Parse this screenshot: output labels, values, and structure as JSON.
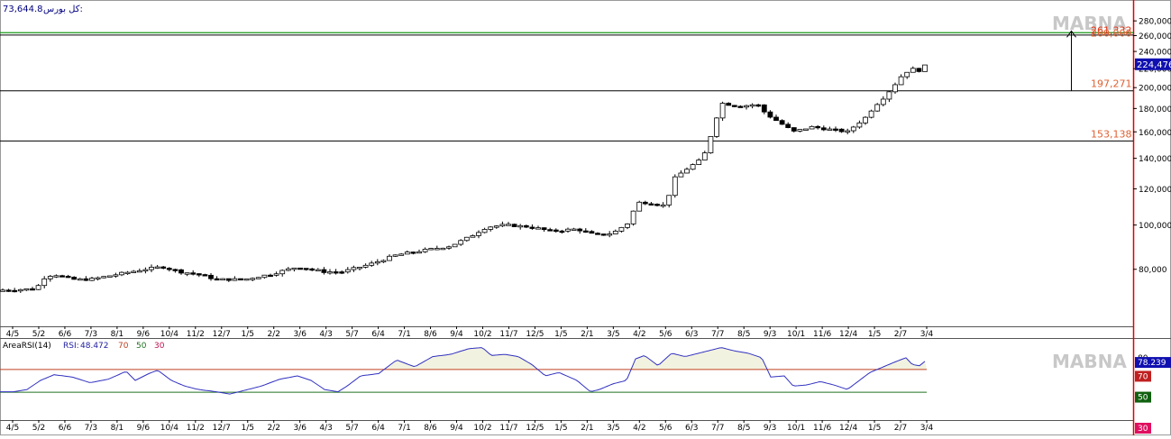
{
  "header": {
    "value": "73,644.8",
    "label": "کل بورس:"
  },
  "watermark": "MABNA",
  "chart_data": [
    {
      "type": "candlestick",
      "y_scale": "log",
      "ylim": [
        60000,
        300000
      ],
      "y_ticks": [
        "80,000",
        "100,000",
        "120,000",
        "140,000",
        "160,000",
        "180,000",
        "200,000",
        "220,000",
        "240,000",
        "260,000",
        "280,000"
      ],
      "y_tick_values": [
        80000,
        100000,
        120000,
        140000,
        160000,
        180000,
        200000,
        220000,
        240000,
        260000,
        280000
      ],
      "x_tick_labels": [
        "4/5",
        "5/2",
        "6/6",
        "7/3",
        "8/1",
        "9/6",
        "10/4",
        "11/2",
        "12/7",
        "1/5",
        "2/2",
        "3/6",
        "4/3",
        "5/7",
        "6/4",
        "7/1",
        "8/6",
        "9/4",
        "10/2",
        "11/7",
        "12/5",
        "1/5",
        "2/1",
        "3/5",
        "4/2",
        "5/6",
        "6/3",
        "7/7",
        "8/5",
        "9/3",
        "10/1",
        "11/6",
        "12/4",
        "1/5",
        "2/7",
        "3/4"
      ],
      "last_price_label": "224,476.",
      "last_price_value": 224476,
      "levels": [
        {
          "label": "197,271",
          "value": 197271
        },
        {
          "label": "153,138",
          "value": 153138
        }
      ],
      "target_labels": [
        "261,332",
        "260,000"
      ],
      "target_values": [
        261332,
        260000
      ],
      "colors": {
        "up": "#ffffff",
        "down": "#000000",
        "last_price_bg": "#1010b0",
        "levels_text": "#e06030",
        "target_text": "#e03010",
        "axis_red": "#e00000"
      },
      "close_anchors": [
        [
          0,
          72000
        ],
        [
          40,
          72500
        ],
        [
          50,
          77000
        ],
        [
          60,
          78000
        ],
        [
          80,
          76000
        ],
        [
          100,
          76000
        ],
        [
          130,
          78000
        ],
        [
          160,
          80000
        ],
        [
          180,
          81000
        ],
        [
          200,
          79000
        ],
        [
          220,
          78000
        ],
        [
          240,
          76000
        ],
        [
          270,
          76000
        ],
        [
          300,
          78000
        ],
        [
          330,
          81000
        ],
        [
          360,
          79000
        ],
        [
          380,
          79000
        ],
        [
          410,
          82000
        ],
        [
          440,
          86000
        ],
        [
          470,
          88000
        ],
        [
          500,
          90000
        ],
        [
          520,
          94000
        ],
        [
          540,
          99000
        ],
        [
          560,
          100000
        ],
        [
          590,
          99000
        ],
        [
          610,
          97000
        ],
        [
          640,
          98000
        ],
        [
          660,
          95000
        ],
        [
          680,
          96000
        ],
        [
          700,
          102000
        ],
        [
          705,
          112000
        ],
        [
          720,
          112000
        ],
        [
          740,
          110000
        ],
        [
          745,
          125000
        ],
        [
          760,
          132000
        ],
        [
          780,
          140000
        ],
        [
          790,
          160000
        ],
        [
          800,
          185000
        ],
        [
          820,
          182000
        ],
        [
          840,
          184000
        ],
        [
          850,
          175000
        ],
        [
          870,
          165000
        ],
        [
          880,
          160000
        ],
        [
          900,
          164000
        ],
        [
          920,
          162000
        ],
        [
          940,
          160000
        ],
        [
          950,
          166000
        ],
        [
          960,
          172000
        ],
        [
          970,
          182000
        ],
        [
          980,
          190000
        ],
        [
          990,
          200000
        ],
        [
          1000,
          212000
        ],
        [
          1010,
          220000
        ],
        [
          1020,
          218000
        ],
        [
          1028,
          224476
        ]
      ]
    },
    {
      "type": "line",
      "title": "AreaRSI(14)",
      "indicator_label": "RSI:",
      "indicator_value": "48.472",
      "levels": [
        "70",
        "50",
        "30"
      ],
      "level_values": [
        70,
        50,
        30
      ],
      "ylim": [
        25,
        95
      ],
      "y_ticks": [
        "80"
      ],
      "last_value_label": "78.239",
      "last_value": 78.239,
      "x_tick_labels": [
        "4/5",
        "5/2",
        "6/6",
        "7/3",
        "8/1",
        "9/6",
        "10/4",
        "11/2",
        "12/7",
        "1/5",
        "2/2",
        "3/6",
        "4/3",
        "5/7",
        "6/4",
        "7/1",
        "8/6",
        "9/4",
        "10/2",
        "11/7",
        "12/5",
        "1/5",
        "2/1",
        "3/5",
        "4/2",
        "5/6",
        "6/3",
        "7/7",
        "8/5",
        "9/3",
        "10/1",
        "11/6",
        "12/4",
        "1/5",
        "2/7",
        "3/4"
      ],
      "colors": {
        "line": "#3030c0",
        "fill": "#f2f2e0",
        "level70": "#c04020",
        "level50": "#207020",
        "level30_bg": "#e01060",
        "level70_bg": "#c02020",
        "level50_bg": "#106010",
        "last_bg": "#1010b0"
      },
      "rsi_anchors": [
        [
          0,
          50
        ],
        [
          15,
          50
        ],
        [
          30,
          52
        ],
        [
          45,
          60
        ],
        [
          60,
          65
        ],
        [
          80,
          63
        ],
        [
          100,
          58
        ],
        [
          120,
          61
        ],
        [
          140,
          68
        ],
        [
          150,
          60
        ],
        [
          165,
          66
        ],
        [
          175,
          69
        ],
        [
          190,
          60
        ],
        [
          205,
          55
        ],
        [
          220,
          52
        ],
        [
          240,
          50
        ],
        [
          255,
          48
        ],
        [
          270,
          51
        ],
        [
          290,
          55
        ],
        [
          310,
          61
        ],
        [
          330,
          64
        ],
        [
          345,
          60
        ],
        [
          360,
          52
        ],
        [
          375,
          50
        ],
        [
          385,
          55
        ],
        [
          400,
          64
        ],
        [
          420,
          66
        ],
        [
          440,
          78
        ],
        [
          460,
          72
        ],
        [
          480,
          81
        ],
        [
          500,
          83
        ],
        [
          520,
          88
        ],
        [
          535,
          89
        ],
        [
          545,
          82
        ],
        [
          560,
          83
        ],
        [
          575,
          81
        ],
        [
          590,
          74
        ],
        [
          605,
          64
        ],
        [
          620,
          67
        ],
        [
          640,
          60
        ],
        [
          655,
          50
        ],
        [
          665,
          52
        ],
        [
          680,
          57
        ],
        [
          695,
          60
        ],
        [
          705,
          79
        ],
        [
          715,
          82
        ],
        [
          730,
          73
        ],
        [
          745,
          84
        ],
        [
          760,
          81
        ],
        [
          780,
          85
        ],
        [
          800,
          89
        ],
        [
          815,
          86
        ],
        [
          830,
          84
        ],
        [
          845,
          80
        ],
        [
          855,
          63
        ],
        [
          870,
          64
        ],
        [
          880,
          55
        ],
        [
          895,
          56
        ],
        [
          910,
          59
        ],
        [
          925,
          56
        ],
        [
          940,
          52
        ],
        [
          950,
          58
        ],
        [
          965,
          67
        ],
        [
          980,
          72
        ],
        [
          995,
          77
        ],
        [
          1005,
          80
        ],
        [
          1012,
          74
        ],
        [
          1020,
          73
        ],
        [
          1028,
          78
        ]
      ]
    }
  ]
}
